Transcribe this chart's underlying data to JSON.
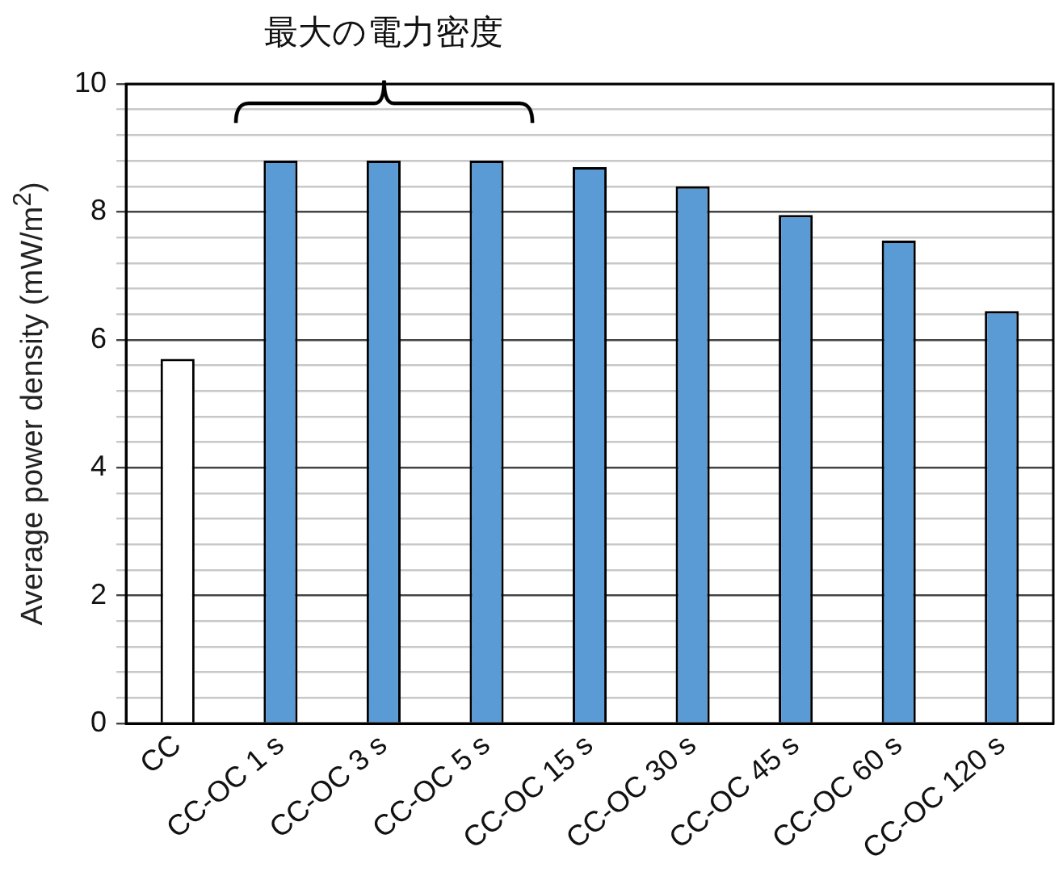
{
  "chart_data": {
    "type": "bar",
    "ylabel": "Average power density (mW/m$^{2}$)",
    "categories": [
      "CC",
      "CC-OC 1 s",
      "CC-OC 3 s",
      "CC-OC 5 s",
      "CC-OC 15 s",
      "CC-OC 30 s",
      "CC-OC 45 s",
      "CC-OC 60 s",
      "CC-OC 120 s"
    ],
    "values": [
      5.7,
      8.8,
      8.8,
      8.8,
      8.7,
      8.4,
      7.95,
      7.55,
      6.45
    ],
    "colors": [
      "#ffffff",
      "#5b9bd5",
      "#5b9bd5",
      "#5b9bd5",
      "#5b9bd5",
      "#5b9bd5",
      "#5b9bd5",
      "#5b9bd5",
      "#5b9bd5"
    ],
    "ylim": [
      0,
      10
    ],
    "yticks": [
      0,
      {
        "value": 0.4,
        "label": null
      },
      {
        "value": 0.8,
        "label": null
      },
      {
        "value": 1.2,
        "label": null
      },
      {
        "value": 1.6,
        "label": null
      },
      2,
      {
        "value": 2.4,
        "label": null
      },
      {
        "value": 2.8,
        "label": null
      },
      {
        "value": 3.2,
        "label": null
      },
      {
        "value": 3.6,
        "label": null
      },
      4,
      {
        "value": 4.4,
        "label": null
      },
      {
        "value": 4.8,
        "label": null
      },
      {
        "value": 5.2,
        "label": null
      },
      {
        "value": 5.6,
        "label": null
      },
      6,
      {
        "value": 6.4,
        "label": null
      },
      {
        "value": 6.8,
        "label": null
      },
      {
        "value": 7.2,
        "label": null
      },
      {
        "value": 7.6,
        "label": null
      },
      8,
      {
        "value": 8.4,
        "label": null
      },
      {
        "value": 8.8,
        "label": null
      },
      {
        "value": 9.2,
        "label": null
      },
      {
        "value": 9.6,
        "label": null
      },
      10
    ],
    "grid": "y",
    "legend": false,
    "annotations": [
      "最大の電力密度"
    ]
  }
}
